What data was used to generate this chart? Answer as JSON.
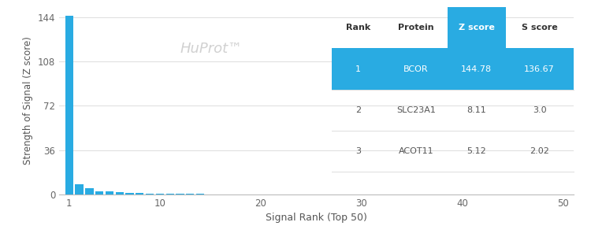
{
  "title": "",
  "xlabel": "Signal Rank (Top 50)",
  "ylabel": "Strength of Signal (Z score)",
  "watermark": "HuProt™",
  "xlim": [
    0,
    51
  ],
  "ylim": [
    0,
    152
  ],
  "yticks": [
    0,
    36,
    72,
    108,
    144
  ],
  "xticks": [
    1,
    10,
    20,
    30,
    40,
    50
  ],
  "bar_color": "#29ABE2",
  "background_color": "#ffffff",
  "n_bars": 50,
  "top_value": 144.78,
  "second_value": 8.11,
  "third_value": 5.12,
  "table": {
    "header": [
      "Rank",
      "Protein",
      "Z score",
      "S score"
    ],
    "rows": [
      [
        "1",
        "BCOR",
        "144.78",
        "136.67"
      ],
      [
        "2",
        "SLC23A1",
        "8.11",
        "3.0"
      ],
      [
        "3",
        "ACOT11",
        "5.12",
        "2.02"
      ]
    ],
    "highlight_row": 0,
    "highlight_color": "#29ABE2",
    "header_zscore_color": "#29ABE2",
    "header_text_color_highlight": "#ffffff",
    "row_text_color": "#555555",
    "header_text_color": "#333333"
  }
}
